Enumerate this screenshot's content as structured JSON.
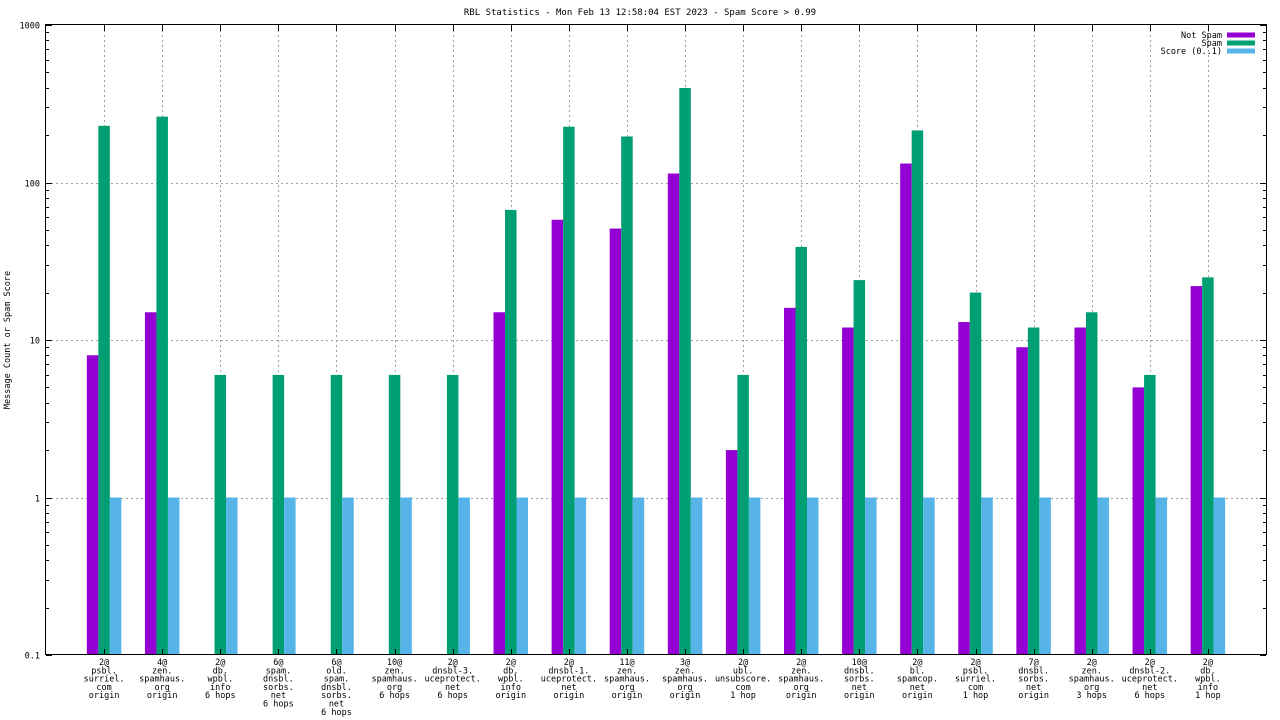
{
  "chart_data": {
    "type": "bar",
    "title": "RBL Statistics - Mon Feb 13 12:58:04 EST 2023 - Spam Score > 0.99",
    "ylabel": "Message Count or Spam Score",
    "xlabel": "",
    "yscale": "log",
    "ylim": [
      0.1,
      1000
    ],
    "yticks": [
      "0.1",
      "1",
      "10",
      "100",
      "1000"
    ],
    "grid": true,
    "legend_position": "top-right",
    "categories": [
      [
        "2@",
        "psbl.",
        "surriel.",
        "com",
        "origin"
      ],
      [
        "4@",
        "zen.",
        "spamhaus.",
        "org",
        "origin"
      ],
      [
        "2@",
        "db.",
        "wpbl.",
        "info",
        "6 hops"
      ],
      [
        "6@",
        "spam.",
        "dnsbl.",
        "sorbs.",
        "net",
        "6 hops"
      ],
      [
        "6@",
        "old.",
        "spam.",
        "dnsbl.",
        "sorbs.",
        "net",
        "6 hops"
      ],
      [
        "10@",
        "zen.",
        "spamhaus.",
        "org",
        "6 hops"
      ],
      [
        "2@",
        "dnsbl-3.",
        "uceprotect.",
        "net",
        "6 hops"
      ],
      [
        "2@",
        "db.",
        "wpbl.",
        "info",
        "origin"
      ],
      [
        "2@",
        "dnsbl-1.",
        "uceprotect.",
        "net",
        "origin"
      ],
      [
        "11@",
        "zen.",
        "spamhaus.",
        "org",
        "origin"
      ],
      [
        "3@",
        "zen.",
        "spamhaus.",
        "org",
        "origin"
      ],
      [
        "2@",
        "ubl.",
        "unsubscore.",
        "com",
        "1 hop"
      ],
      [
        "2@",
        "zen.",
        "spamhaus.",
        "org",
        "origin"
      ],
      [
        "10@",
        "dnsbl.",
        "sorbs.",
        "net",
        "origin"
      ],
      [
        "2@",
        "bl.",
        "spamcop.",
        "net",
        "origin"
      ],
      [
        "2@",
        "psbl.",
        "surriel.",
        "com",
        "1 hop"
      ],
      [
        "7@",
        "dnsbl.",
        "sorbs.",
        "net",
        "origin"
      ],
      [
        "2@",
        "zen.",
        "spamhaus.",
        "org",
        "3 hops"
      ],
      [
        "2@",
        "dnsbl-2.",
        "uceprotect.",
        "net",
        "6 hops"
      ],
      [
        "2@",
        "db.",
        "wpbl.",
        "info",
        "1 hop"
      ]
    ],
    "series": [
      {
        "name": "Not Spam",
        "color": "#9400d3",
        "values": [
          8,
          15,
          0,
          0,
          0,
          0,
          0,
          15,
          58,
          51,
          114,
          2,
          16,
          12,
          132,
          13,
          9,
          12,
          5,
          22
        ]
      },
      {
        "name": "Spam",
        "color": "#009e73",
        "values": [
          229,
          262,
          6,
          6,
          6,
          6,
          6,
          67,
          226,
          196,
          398,
          6,
          39,
          24,
          214,
          20,
          12,
          15,
          6,
          25
        ]
      },
      {
        "name": "Score (0..1)",
        "color": "#56b4e9",
        "values": [
          1,
          1,
          1,
          1,
          1,
          1,
          1,
          1,
          1,
          1,
          1,
          1,
          1,
          1,
          1,
          1,
          1,
          1,
          1,
          1
        ]
      }
    ]
  }
}
